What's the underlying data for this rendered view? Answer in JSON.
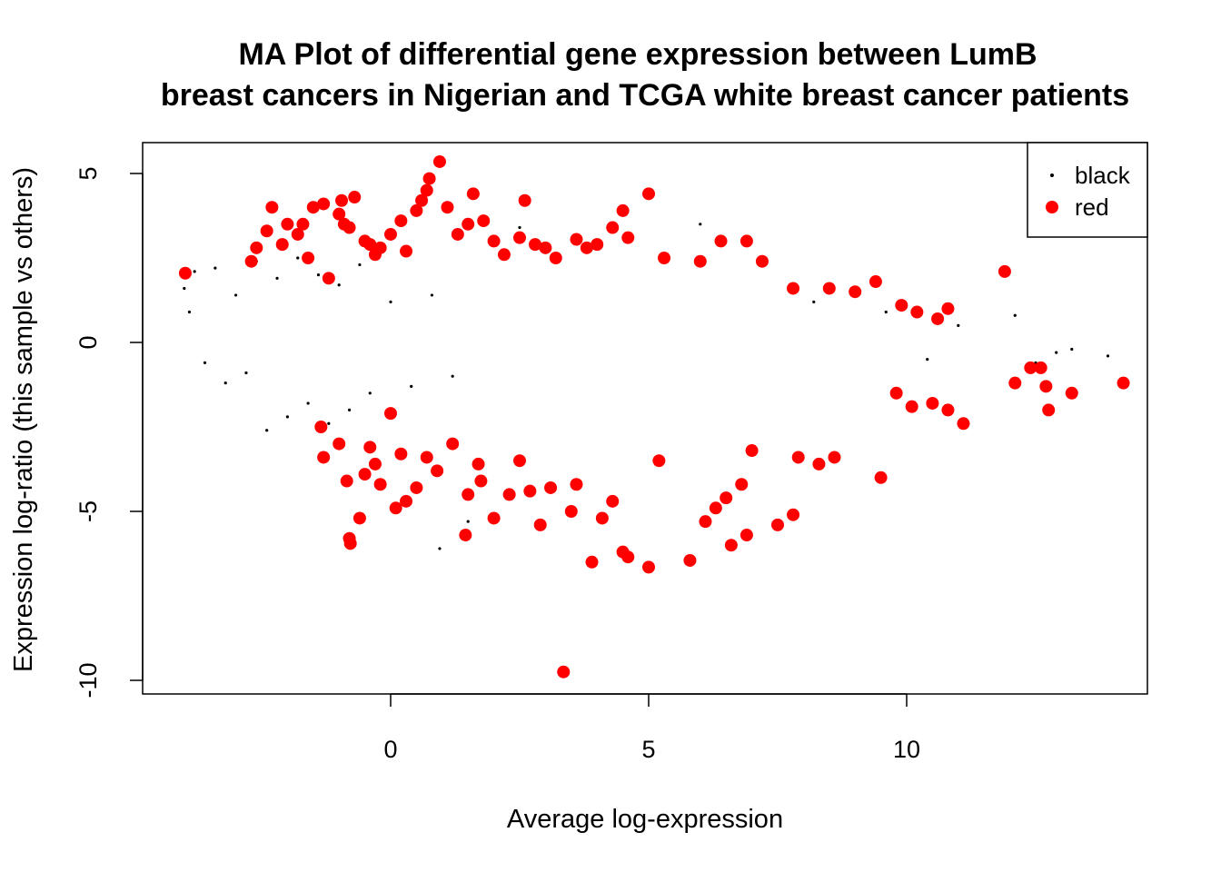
{
  "chart_data": {
    "type": "scatter",
    "title_line1": "MA Plot of differential gene expression between LumB",
    "title_line2": "breast cancers in Nigerian and TCGA white breast cancer patients",
    "xlabel": "Average log-expression",
    "ylabel": "Expression log-ratio (this sample vs others)",
    "xlim": [
      -4.8,
      14.7
    ],
    "ylim": [
      -10.4,
      5.9
    ],
    "x_ticks": [
      0,
      5,
      10
    ],
    "x_tick_labels": [
      "0",
      "5",
      "10"
    ],
    "y_ticks": [
      -10,
      -5,
      0,
      5
    ],
    "y_tick_labels": [
      "-10",
      "-5",
      "0",
      "5"
    ],
    "grid": false,
    "legend": {
      "position": "top-right",
      "entries": [
        {
          "label": "black",
          "color": "#000000",
          "marker": "small-dot"
        },
        {
          "label": "red",
          "color": "#ff0000",
          "marker": "large-dot"
        }
      ]
    },
    "series": [
      {
        "name": "black",
        "color": "#000000",
        "description_of_distribution": "non-significant genes, centered on log-ratio 0",
        "points": [
          [
            -4.0,
            1.6
          ],
          [
            -3.9,
            0.9
          ],
          [
            -3.8,
            2.1
          ],
          [
            -3.6,
            -0.6
          ],
          [
            -3.4,
            2.2
          ],
          [
            -3.2,
            -1.2
          ],
          [
            -3.0,
            1.4
          ],
          [
            -2.8,
            -0.9
          ],
          [
            -2.6,
            2.4
          ],
          [
            -2.4,
            -2.6
          ],
          [
            -2.2,
            1.9
          ],
          [
            -2.0,
            -2.2
          ],
          [
            -1.8,
            2.5
          ],
          [
            -1.6,
            -1.8
          ],
          [
            -1.4,
            2.0
          ],
          [
            -1.2,
            -2.4
          ],
          [
            -1.0,
            1.7
          ],
          [
            -0.8,
            -2.0
          ],
          [
            -0.6,
            2.3
          ],
          [
            -0.4,
            -1.5
          ],
          [
            0.0,
            1.2
          ],
          [
            0.4,
            -1.3
          ],
          [
            0.8,
            1.4
          ],
          [
            0.95,
            -6.1
          ],
          [
            1.2,
            -1.0
          ],
          [
            1.5,
            -5.3
          ],
          [
            2.5,
            3.4
          ],
          [
            6.0,
            3.5
          ],
          [
            8.2,
            1.2
          ],
          [
            9.6,
            0.9
          ],
          [
            10.4,
            -0.5
          ],
          [
            11.0,
            0.5
          ],
          [
            12.1,
            0.8
          ],
          [
            12.5,
            -0.6
          ],
          [
            12.9,
            -0.3
          ],
          [
            13.2,
            -0.2
          ],
          [
            13.9,
            -0.4
          ]
        ]
      },
      {
        "name": "red",
        "color": "#ff0000",
        "description_of_distribution": "significant genes, above and below the black band",
        "points": [
          [
            -3.98,
            2.05
          ],
          [
            -2.7,
            2.4
          ],
          [
            -2.6,
            2.8
          ],
          [
            -2.4,
            3.3
          ],
          [
            -2.3,
            4.0
          ],
          [
            -2.1,
            2.9
          ],
          [
            -2.0,
            3.5
          ],
          [
            -1.8,
            3.2
          ],
          [
            -1.7,
            3.5
          ],
          [
            -1.6,
            2.5
          ],
          [
            -1.5,
            4.0
          ],
          [
            -1.3,
            4.1
          ],
          [
            -1.2,
            1.9
          ],
          [
            -1.0,
            3.8
          ],
          [
            -0.95,
            4.2
          ],
          [
            -0.9,
            3.5
          ],
          [
            -0.8,
            3.4
          ],
          [
            -0.7,
            4.3
          ],
          [
            -0.5,
            3.0
          ],
          [
            -0.4,
            2.9
          ],
          [
            -0.3,
            2.6
          ],
          [
            -0.2,
            2.8
          ],
          [
            0.0,
            3.2
          ],
          [
            0.2,
            3.6
          ],
          [
            0.3,
            2.7
          ],
          [
            0.5,
            3.9
          ],
          [
            0.6,
            4.2
          ],
          [
            0.7,
            4.5
          ],
          [
            0.75,
            4.85
          ],
          [
            0.95,
            5.35
          ],
          [
            1.1,
            4.0
          ],
          [
            1.3,
            3.2
          ],
          [
            1.5,
            3.5
          ],
          [
            1.6,
            4.4
          ],
          [
            1.8,
            3.6
          ],
          [
            2.0,
            3.0
          ],
          [
            2.2,
            2.6
          ],
          [
            2.5,
            3.1
          ],
          [
            2.6,
            4.2
          ],
          [
            2.8,
            2.9
          ],
          [
            3.0,
            2.8
          ],
          [
            3.2,
            2.5
          ],
          [
            3.6,
            3.05
          ],
          [
            3.8,
            2.8
          ],
          [
            4.0,
            2.9
          ],
          [
            4.3,
            3.4
          ],
          [
            4.5,
            3.9
          ],
          [
            4.6,
            3.1
          ],
          [
            5.0,
            4.4
          ],
          [
            5.3,
            2.5
          ],
          [
            6.0,
            2.4
          ],
          [
            6.4,
            3.0
          ],
          [
            6.9,
            3.0
          ],
          [
            7.2,
            2.4
          ],
          [
            7.8,
            1.6
          ],
          [
            8.5,
            1.6
          ],
          [
            9.0,
            1.5
          ],
          [
            9.4,
            1.8
          ],
          [
            9.9,
            1.1
          ],
          [
            10.2,
            0.9
          ],
          [
            10.6,
            0.7
          ],
          [
            10.8,
            1.0
          ],
          [
            11.9,
            2.1
          ],
          [
            -1.35,
            -2.5
          ],
          [
            -1.3,
            -3.4
          ],
          [
            -1.0,
            -3.0
          ],
          [
            -0.85,
            -4.1
          ],
          [
            -0.8,
            -5.8
          ],
          [
            -0.78,
            -5.95
          ],
          [
            -0.6,
            -5.2
          ],
          [
            -0.5,
            -3.9
          ],
          [
            -0.4,
            -3.1
          ],
          [
            -0.3,
            -3.6
          ],
          [
            -0.2,
            -4.2
          ],
          [
            0.0,
            -2.1
          ],
          [
            0.1,
            -4.9
          ],
          [
            0.2,
            -3.3
          ],
          [
            0.3,
            -4.7
          ],
          [
            0.5,
            -4.3
          ],
          [
            0.7,
            -3.4
          ],
          [
            0.9,
            -3.8
          ],
          [
            1.2,
            -3.0
          ],
          [
            1.5,
            -4.5
          ],
          [
            1.45,
            -5.7
          ],
          [
            1.7,
            -3.6
          ],
          [
            1.75,
            -4.1
          ],
          [
            2.0,
            -5.2
          ],
          [
            2.3,
            -4.5
          ],
          [
            2.5,
            -3.5
          ],
          [
            2.7,
            -4.4
          ],
          [
            2.9,
            -5.4
          ],
          [
            3.1,
            -4.3
          ],
          [
            3.5,
            -5.0
          ],
          [
            3.35,
            -9.75
          ],
          [
            3.6,
            -4.2
          ],
          [
            3.9,
            -6.5
          ],
          [
            4.1,
            -5.2
          ],
          [
            4.3,
            -4.7
          ],
          [
            4.5,
            -6.2
          ],
          [
            4.6,
            -6.35
          ],
          [
            5.0,
            -6.65
          ],
          [
            5.2,
            -3.5
          ],
          [
            5.8,
            -6.45
          ],
          [
            6.1,
            -5.3
          ],
          [
            6.3,
            -4.9
          ],
          [
            6.5,
            -4.6
          ],
          [
            6.6,
            -6.0
          ],
          [
            6.8,
            -4.2
          ],
          [
            6.9,
            -5.7
          ],
          [
            7.0,
            -3.2
          ],
          [
            7.5,
            -5.4
          ],
          [
            7.8,
            -5.1
          ],
          [
            7.9,
            -3.4
          ],
          [
            8.3,
            -3.6
          ],
          [
            8.6,
            -3.4
          ],
          [
            9.5,
            -4.0
          ],
          [
            9.8,
            -1.5
          ],
          [
            10.1,
            -1.9
          ],
          [
            10.5,
            -1.8
          ],
          [
            10.8,
            -2.0
          ],
          [
            11.1,
            -2.4
          ],
          [
            12.1,
            -1.2
          ],
          [
            12.4,
            -0.75
          ],
          [
            12.6,
            -0.75
          ],
          [
            12.7,
            -1.3
          ],
          [
            12.75,
            -2.0
          ],
          [
            13.2,
            -1.5
          ],
          [
            14.2,
            -1.2
          ]
        ]
      }
    ]
  }
}
